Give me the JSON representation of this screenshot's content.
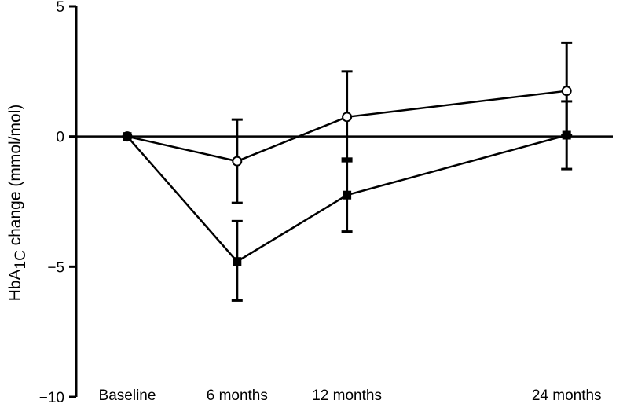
{
  "chart_data": {
    "type": "line",
    "title": "",
    "xlabel": "",
    "ylabel": {
      "prefix": "HbA",
      "subscript": "1C",
      "suffix": " change (mmol/mol)"
    },
    "ylim": [
      -10,
      5
    ],
    "yticks": [
      5,
      0,
      -5,
      -10
    ],
    "ytick_labels": [
      "5",
      "0",
      "−5",
      "−10"
    ],
    "categories": [
      "Baseline",
      "6 months",
      "12 months",
      "24 months"
    ],
    "x_months": [
      0,
      6,
      12,
      24
    ],
    "zero_reference_line": true,
    "grid": false,
    "series": [
      {
        "marker": "open-circle",
        "values": [
          0,
          -0.95,
          0.75,
          1.75
        ],
        "error_low": [
          0,
          -2.55,
          -0.95,
          0.05
        ],
        "error_high": [
          0,
          0.65,
          2.5,
          3.6
        ]
      },
      {
        "marker": "filled-square",
        "values": [
          0,
          -4.8,
          -2.25,
          0.05
        ],
        "error_low": [
          0,
          -6.3,
          -3.65,
          -1.25
        ],
        "error_high": [
          0,
          -3.25,
          -0.85,
          1.35
        ]
      }
    ]
  }
}
